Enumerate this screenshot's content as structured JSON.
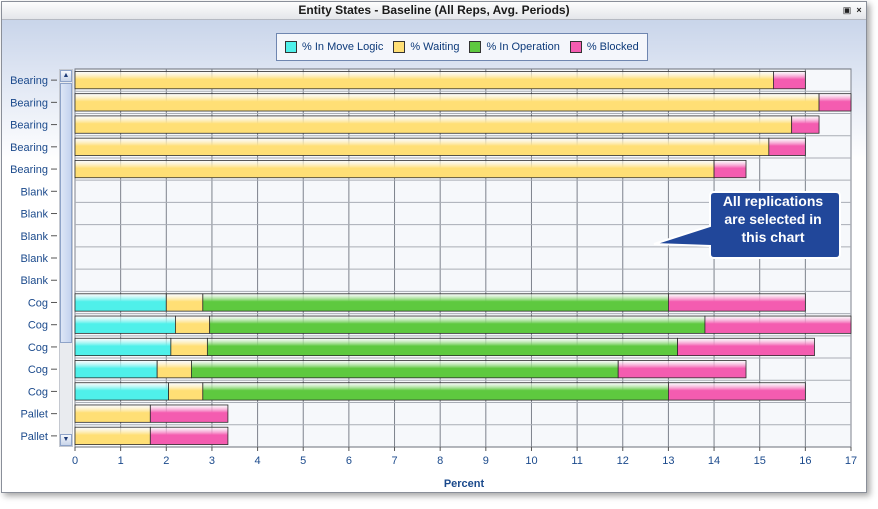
{
  "window": {
    "title": "Entity States - Baseline (All Reps, Avg. Periods)",
    "restore_icon": "restore-icon",
    "close_label": "×"
  },
  "callout": {
    "text": "All replications are selected in this chart"
  },
  "colors": {
    "move_logic": "#4ff0ea",
    "waiting": "#ffdf75",
    "operation": "#5ec93f",
    "blocked": "#f45cb0"
  },
  "chart_data": {
    "type": "bar",
    "orientation": "horizontal",
    "stacked": true,
    "title": "",
    "xlabel": "Percent",
    "ylabel": "",
    "xlim": [
      0,
      17
    ],
    "x_ticks": [
      "0",
      "1",
      "2",
      "3",
      "4",
      "5",
      "6",
      "7",
      "8",
      "9",
      "10",
      "11",
      "12",
      "13",
      "14",
      "15",
      "16",
      "17"
    ],
    "grid": true,
    "legend_placement": "top-center",
    "categories": [
      "Bearing",
      "Bearing",
      "Bearing",
      "Bearing",
      "Bearing",
      "Blank",
      "Blank",
      "Blank",
      "Blank",
      "Blank",
      "Cog",
      "Cog",
      "Cog",
      "Cog",
      "Cog",
      "Pallet",
      "Pallet"
    ],
    "series": [
      {
        "name": "% In Move Logic",
        "color": "#4ff0ea",
        "values": [
          0,
          0,
          0,
          0,
          0,
          0,
          0,
          0,
          0,
          0,
          2.0,
          2.2,
          2.1,
          1.8,
          2.05,
          0,
          0
        ]
      },
      {
        "name": "% Waiting",
        "color": "#ffdf75",
        "values": [
          15.3,
          16.3,
          15.7,
          15.2,
          14.0,
          0,
          0,
          0,
          0,
          0,
          0.8,
          0.75,
          0.8,
          0.75,
          0.75,
          1.65,
          1.65
        ]
      },
      {
        "name": "% In Operation",
        "color": "#5ec93f",
        "values": [
          0,
          0,
          0,
          0,
          0,
          0,
          0,
          0,
          0,
          0,
          10.2,
          10.85,
          10.3,
          9.35,
          10.2,
          0,
          0
        ]
      },
      {
        "name": "% Blocked",
        "color": "#f45cb0",
        "values": [
          0.7,
          0.7,
          0.6,
          0.8,
          0.7,
          0,
          0,
          0,
          0,
          0,
          3.0,
          3.2,
          3.0,
          2.8,
          3.0,
          1.7,
          1.7
        ]
      }
    ]
  }
}
